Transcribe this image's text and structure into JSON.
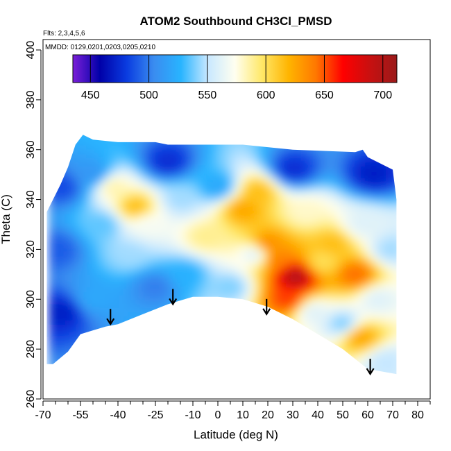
{
  "chart_data": {
    "type": "heatmap",
    "title": "ATOM2 Southbound CH3Cl_PMSD",
    "flights_note": "Flts: 2,3,4,5,6",
    "dates_note": "MMDD: 0129,0201,0203,0205,0210",
    "xlabel": "Latitude (deg N)",
    "ylabel": "Theta (C)",
    "xlim": [
      -70,
      85
    ],
    "ylim": [
      260,
      405
    ],
    "x_ticks": [
      -70,
      -55,
      -40,
      -25,
      -10,
      0,
      10,
      20,
      30,
      40,
      50,
      60,
      70,
      80
    ],
    "x_minor_ticks": [
      -65,
      -60,
      -50,
      -45,
      -35,
      -30,
      -20,
      -15,
      -5,
      5,
      15,
      25,
      35,
      45,
      55,
      65,
      75,
      85
    ],
    "y_ticks": [
      260,
      280,
      300,
      320,
      340,
      360,
      380,
      400
    ],
    "grid": false,
    "colorbar": {
      "ticks": [
        450,
        500,
        550,
        600,
        650,
        700
      ],
      "range": [
        435,
        712
      ],
      "placement": "top",
      "colors": [
        "#7b1fd8",
        "#0000a8",
        "#0a3ce0",
        "#3a8cf0",
        "#28b4ff",
        "#c8e8ff",
        "#fffff0",
        "#ffe868",
        "#ffb400",
        "#ff7800",
        "#ff0000",
        "#c81010",
        "#9a1a1a"
      ]
    },
    "valid_region": {
      "top_boundary": [
        [
          -68.5,
          335
        ],
        [
          -66,
          340
        ],
        [
          -63,
          346
        ],
        [
          -60,
          353
        ],
        [
          -57,
          362
        ],
        [
          -54,
          366
        ],
        [
          -50,
          364
        ],
        [
          -40,
          363
        ],
        [
          -25,
          363
        ],
        [
          -20,
          362
        ],
        [
          10,
          362
        ],
        [
          30,
          360
        ],
        [
          55,
          359
        ],
        [
          58,
          360
        ],
        [
          60,
          357
        ],
        [
          70,
          352
        ],
        [
          71.5,
          340
        ]
      ],
      "bottom_boundary": [
        [
          -68.5,
          274
        ],
        [
          -66,
          274
        ],
        [
          -60,
          279
        ],
        [
          -55,
          286
        ],
        [
          -45,
          289
        ],
        [
          -40,
          290
        ],
        [
          -30,
          294
        ],
        [
          -20,
          298
        ],
        [
          -10,
          301
        ],
        [
          0,
          301
        ],
        [
          10,
          300
        ],
        [
          20,
          297
        ],
        [
          30,
          292
        ],
        [
          40,
          286
        ],
        [
          50,
          280
        ],
        [
          60,
          272
        ],
        [
          71.5,
          270
        ]
      ]
    },
    "field": [
      {
        "lat": -64,
        "theta": 320,
        "value": 490
      },
      {
        "lat": -62,
        "theta": 295,
        "value": 470
      },
      {
        "lat": -62,
        "theta": 345,
        "value": 485
      },
      {
        "lat": -50,
        "theta": 350,
        "value": 510
      },
      {
        "lat": -50,
        "theta": 300,
        "value": 520
      },
      {
        "lat": -46,
        "theta": 330,
        "value": 535
      },
      {
        "lat": -42,
        "theta": 345,
        "value": 585
      },
      {
        "lat": -35,
        "theta": 318,
        "value": 545
      },
      {
        "lat": -33,
        "theta": 337,
        "value": 615
      },
      {
        "lat": -28,
        "theta": 330,
        "value": 570
      },
      {
        "lat": -25,
        "theta": 305,
        "value": 500
      },
      {
        "lat": -20,
        "theta": 355,
        "value": 475
      },
      {
        "lat": -15,
        "theta": 340,
        "value": 545
      },
      {
        "lat": -13,
        "theta": 310,
        "value": 525
      },
      {
        "lat": -5,
        "theta": 325,
        "value": 590
      },
      {
        "lat": 0,
        "theta": 345,
        "value": 520
      },
      {
        "lat": 5,
        "theta": 305,
        "value": 540
      },
      {
        "lat": 10,
        "theta": 336,
        "value": 625
      },
      {
        "lat": 15,
        "theta": 318,
        "value": 560
      },
      {
        "lat": 16,
        "theta": 343,
        "value": 615
      },
      {
        "lat": 20,
        "theta": 322,
        "value": 635
      },
      {
        "lat": 24,
        "theta": 316,
        "value": 640
      },
      {
        "lat": 28,
        "theta": 300,
        "value": 655
      },
      {
        "lat": 31,
        "theta": 309,
        "value": 700
      },
      {
        "lat": 30,
        "theta": 352,
        "value": 475
      },
      {
        "lat": 35,
        "theta": 335,
        "value": 580
      },
      {
        "lat": 38,
        "theta": 295,
        "value": 560
      },
      {
        "lat": 42,
        "theta": 315,
        "value": 600
      },
      {
        "lat": 46,
        "theta": 322,
        "value": 615
      },
      {
        "lat": 50,
        "theta": 290,
        "value": 540
      },
      {
        "lat": 55,
        "theta": 310,
        "value": 645
      },
      {
        "lat": 57,
        "theta": 285,
        "value": 625
      },
      {
        "lat": 58,
        "theta": 330,
        "value": 560
      },
      {
        "lat": 62,
        "theta": 350,
        "value": 470
      },
      {
        "lat": 64,
        "theta": 300,
        "value": 560
      },
      {
        "lat": 67,
        "theta": 275,
        "value": 550
      },
      {
        "lat": 69,
        "theta": 320,
        "value": 545
      }
    ],
    "arrows": [
      {
        "lat": -43,
        "theta": 290,
        "direction": "down"
      },
      {
        "lat": -18,
        "theta": 298,
        "direction": "down"
      },
      {
        "lat": 19.5,
        "theta": 294,
        "direction": "down"
      },
      {
        "lat": 61,
        "theta": 270,
        "direction": "down"
      }
    ]
  }
}
